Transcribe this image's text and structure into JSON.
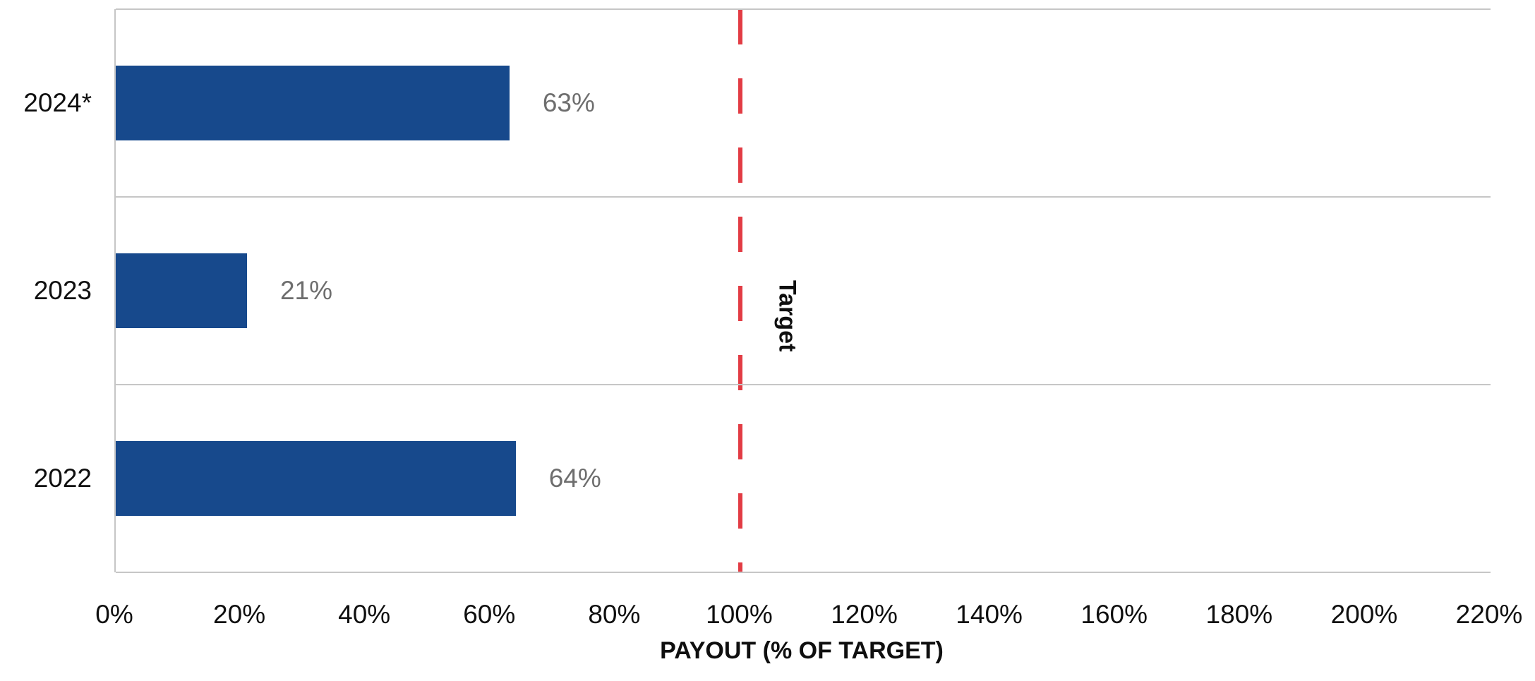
{
  "chart_data": {
    "type": "bar",
    "orientation": "horizontal",
    "categories": [
      "2024*",
      "2023",
      "2022"
    ],
    "values": [
      63,
      21,
      64
    ],
    "data_labels": [
      "63%",
      "21%",
      "64%"
    ],
    "xlabel": "PAYOUT (% OF TARGET)",
    "ylabel": "",
    "xlim": [
      0,
      220
    ],
    "x_tick_values": [
      0,
      20,
      40,
      60,
      80,
      100,
      120,
      140,
      160,
      180,
      200,
      220
    ],
    "x_tick_labels": [
      "0%",
      "20%",
      "40%",
      "60%",
      "80%",
      "100%",
      "120%",
      "140%",
      "160%",
      "180%",
      "200%",
      "220%"
    ],
    "grid": "category band separators, horizontal",
    "legend": "none",
    "reference_line": {
      "value": 100,
      "label": "Target",
      "style": "dashed",
      "color": "#E23C44"
    },
    "colors": {
      "bar": "#17498C",
      "data_label": "#6E6E6E",
      "gridline": "#C6C6C6",
      "axis_text": "#0F0F0F",
      "background": "#FFFFFF"
    }
  }
}
